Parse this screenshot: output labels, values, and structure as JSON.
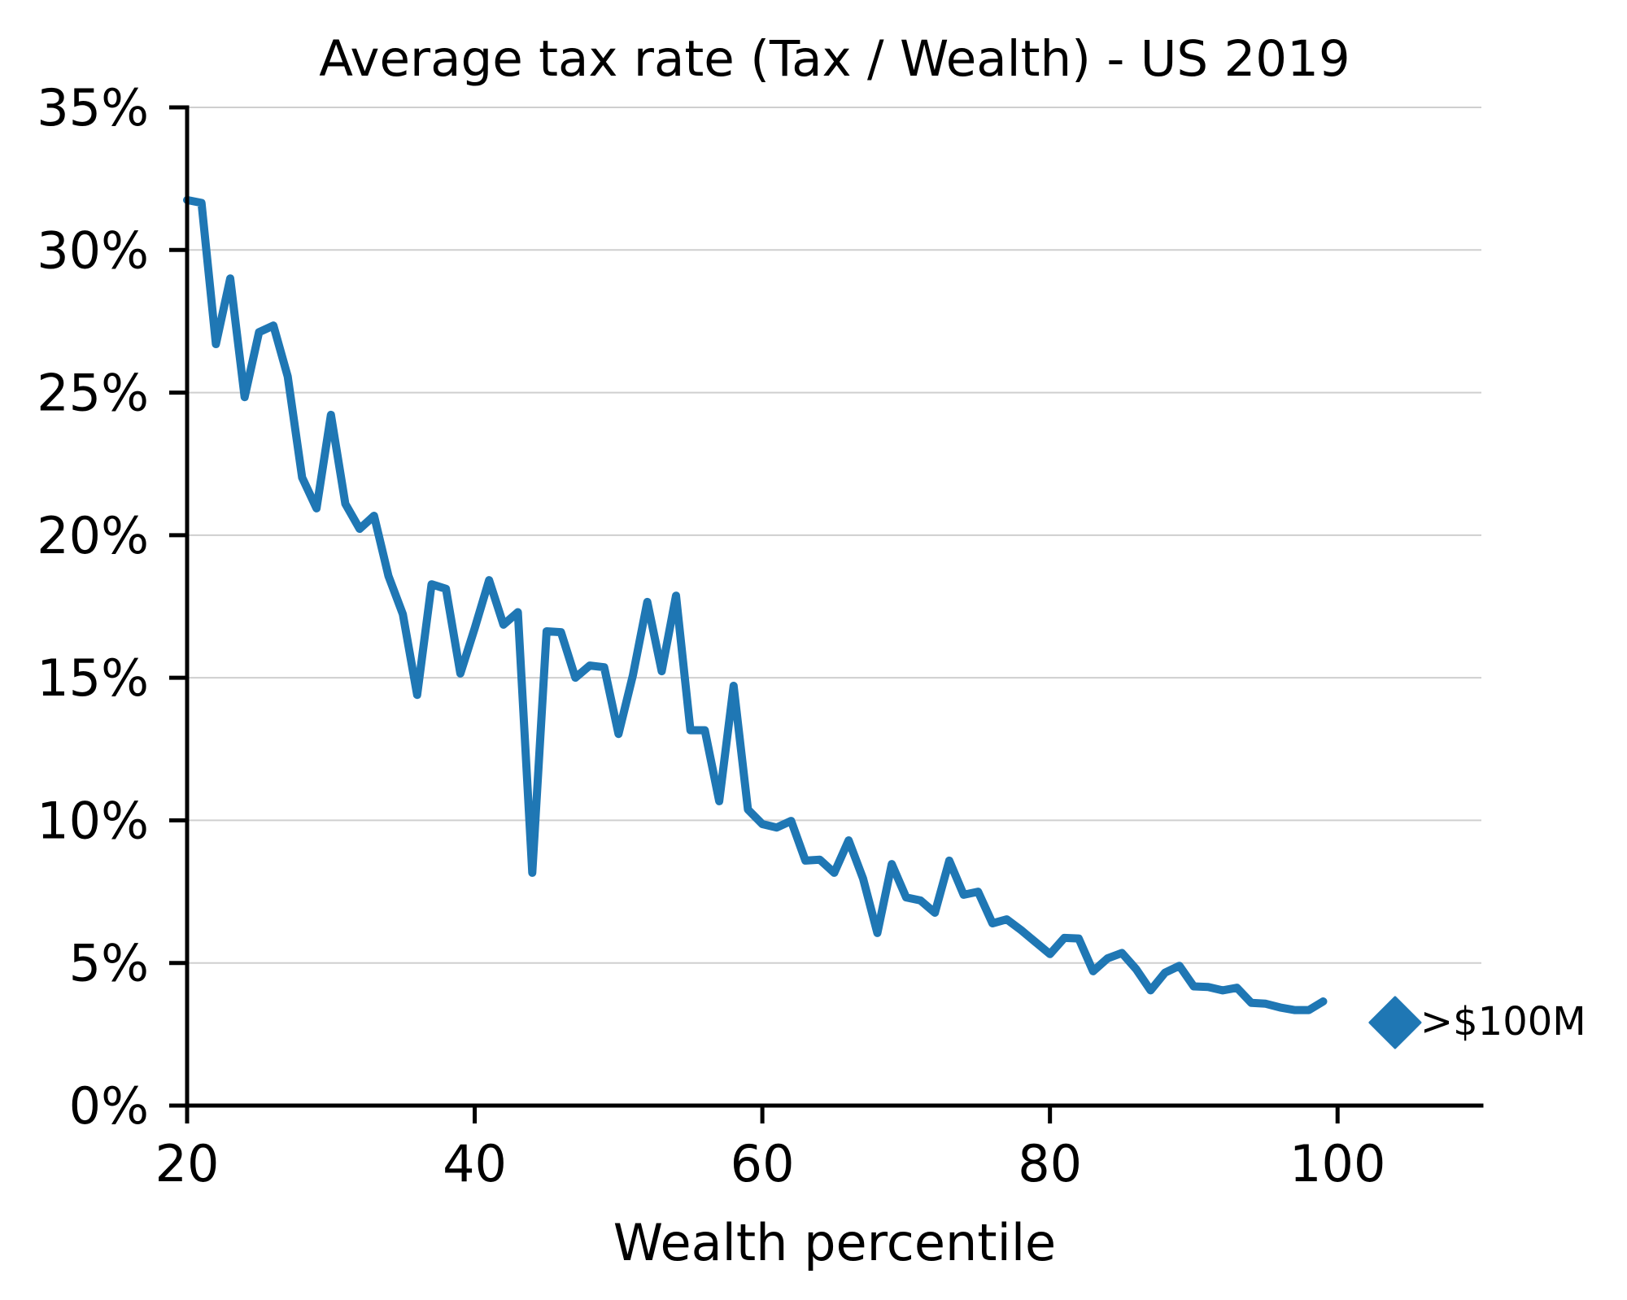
{
  "chart_data": {
    "type": "line",
    "title": "Average tax rate (Tax / Wealth) - US 2019",
    "xlabel": "Wealth percentile",
    "ylabel": "",
    "xlim": [
      20,
      110
    ],
    "ylim": [
      0,
      35
    ],
    "grid": "horizontal",
    "x_ticks": [
      20,
      40,
      60,
      80,
      100
    ],
    "x_tick_labels": [
      "20",
      "40",
      "60",
      "80",
      "100"
    ],
    "y_ticks": [
      0,
      5,
      10,
      15,
      20,
      25,
      30,
      35
    ],
    "y_tick_labels": [
      "0%",
      "5%",
      "10%",
      "15%",
      "20%",
      "25%",
      "30%",
      "35%"
    ],
    "y_unit": "%",
    "series": [
      {
        "name": "Average tax rate",
        "color": "#1f77b4",
        "x": [
          20,
          21,
          22,
          23,
          24,
          25,
          26,
          27,
          28,
          29,
          30,
          31,
          32,
          33,
          34,
          35,
          36,
          37,
          38,
          39,
          40,
          41,
          42,
          43,
          44,
          45,
          46,
          47,
          48,
          49,
          50,
          51,
          52,
          53,
          54,
          55,
          56,
          57,
          58,
          59,
          60,
          61,
          62,
          63,
          64,
          65,
          66,
          67,
          68,
          69,
          70,
          71,
          72,
          73,
          74,
          75,
          76,
          77,
          78,
          79,
          80,
          81,
          82,
          83,
          84,
          85,
          86,
          87,
          88,
          89,
          90,
          91,
          92,
          93,
          94,
          95,
          96,
          97,
          98,
          99
        ],
        "values": [
          31.75,
          31.65,
          26.7,
          29.0,
          24.84,
          27.12,
          27.35,
          25.56,
          22.02,
          20.94,
          24.22,
          21.1,
          20.22,
          20.68,
          18.57,
          17.23,
          14.4,
          18.28,
          18.12,
          15.15,
          16.74,
          18.42,
          16.86,
          17.3,
          8.16,
          16.63,
          16.6,
          15.0,
          15.43,
          15.37,
          13.03,
          15.09,
          17.66,
          15.23,
          17.88,
          13.16,
          13.16,
          10.67,
          14.72,
          10.38,
          9.87,
          9.75,
          9.98,
          8.59,
          8.62,
          8.16,
          9.3,
          7.96,
          6.05,
          8.47,
          7.3,
          7.19,
          6.76,
          8.59,
          7.39,
          7.5,
          6.39,
          6.53,
          6.15,
          5.73,
          5.31,
          5.88,
          5.86,
          4.71,
          5.16,
          5.35,
          4.78,
          4.04,
          4.66,
          4.9,
          4.18,
          4.16,
          4.04,
          4.13,
          3.6,
          3.57,
          3.44,
          3.35,
          3.35,
          3.65
        ]
      }
    ],
    "annotations": [
      {
        "type": "marker",
        "shape": "diamond",
        "x": 104,
        "y": 2.91,
        "color": "#1f77b4",
        "label": ">$100M"
      }
    ]
  }
}
